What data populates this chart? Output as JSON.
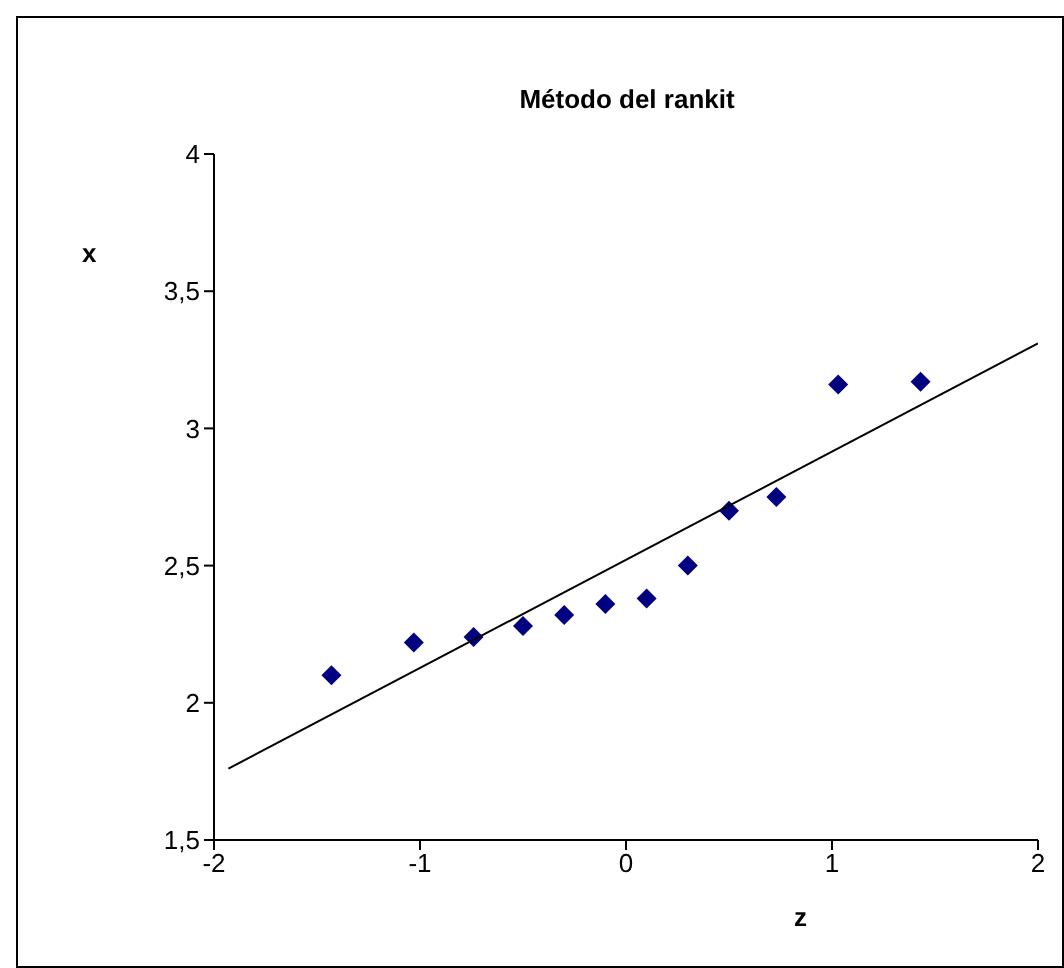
{
  "chart_data": {
    "type": "scatter",
    "title": "Método del rankit",
    "xlabel": "z",
    "ylabel": "x",
    "series": [
      {
        "color": "#000080",
        "marker": "diamond",
        "x": [
          -1.43,
          -1.03,
          -0.74,
          -0.5,
          -0.3,
          -0.1,
          0.1,
          0.3,
          0.5,
          0.73,
          1.03,
          1.43
        ],
        "values": [
          2.1,
          2.22,
          2.24,
          2.28,
          2.32,
          2.36,
          2.38,
          2.5,
          2.7,
          2.75,
          3.16,
          3.17
        ]
      },
      {
        "type": "line",
        "color": "#000000",
        "marker": "none",
        "x": [
          -1.93,
          2
        ],
        "values": [
          1.76,
          3.31
        ]
      }
    ],
    "xlim": [
      -2,
      2
    ],
    "xticks": [
      -2,
      -1,
      0,
      1,
      2
    ],
    "ylim": [
      1.5,
      4
    ],
    "yticks": [
      {
        "value": 1.5,
        "label": "1,5"
      },
      2,
      {
        "value": 2.5,
        "label": "2,5"
      },
      3,
      {
        "value": 3.5,
        "label": "3,5"
      },
      4
    ],
    "grid": false
  }
}
